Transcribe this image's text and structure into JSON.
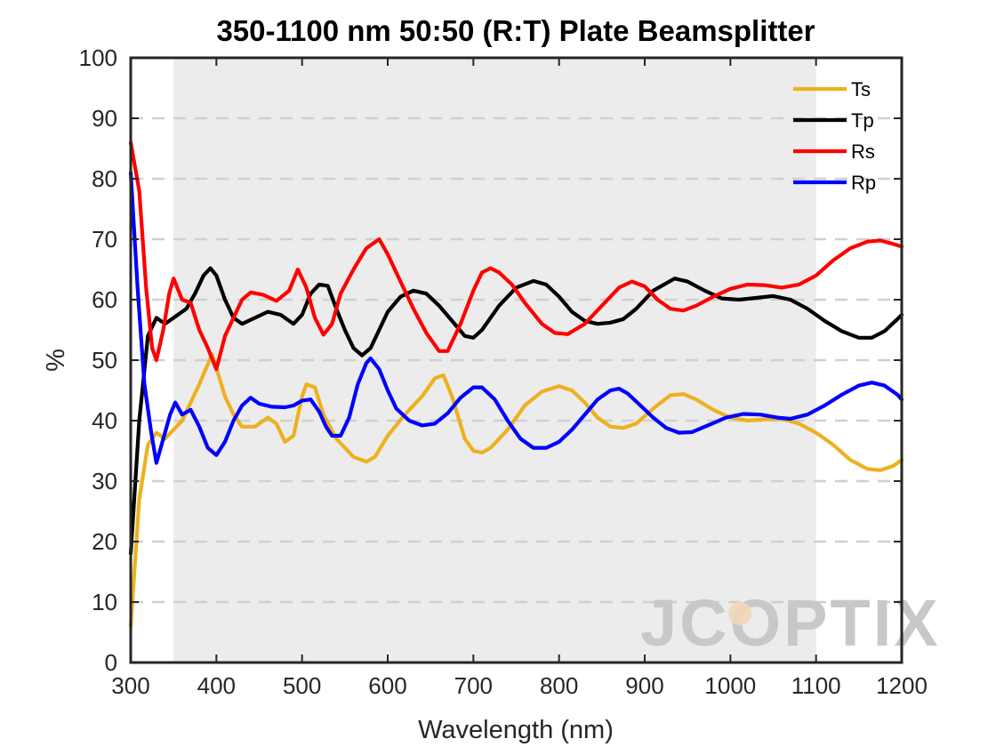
{
  "chart_data": {
    "type": "line",
    "title": "350-1100 nm 50:50 (R:T) Plate Beamsplitter",
    "xlabel": "Wavelength (nm)",
    "ylabel": "%",
    "xlim": [
      300,
      1200
    ],
    "ylim": [
      0,
      100
    ],
    "xticks": [
      300,
      400,
      500,
      600,
      700,
      800,
      900,
      1000,
      1100,
      1200
    ],
    "yticks": [
      0,
      10,
      20,
      30,
      40,
      50,
      60,
      70,
      80,
      90,
      100
    ],
    "grid": "horizontal dashed",
    "legend_position": "top-right",
    "shaded_band": [
      350,
      1100
    ],
    "watermark": "JCOPTIX",
    "series": [
      {
        "name": "Ts",
        "color": "#EDB120",
        "points": [
          [
            300,
            6
          ],
          [
            310,
            27
          ],
          [
            320,
            36
          ],
          [
            330,
            38
          ],
          [
            340,
            37
          ],
          [
            360,
            40
          ],
          [
            380,
            46
          ],
          [
            395,
            51
          ],
          [
            410,
            44
          ],
          [
            420,
            41
          ],
          [
            430,
            39
          ],
          [
            445,
            39
          ],
          [
            460,
            40.5
          ],
          [
            470,
            39.5
          ],
          [
            480,
            36.5
          ],
          [
            490,
            37.5
          ],
          [
            500,
            44
          ],
          [
            505,
            46
          ],
          [
            515,
            45.5
          ],
          [
            525,
            41
          ],
          [
            540,
            37
          ],
          [
            560,
            34
          ],
          [
            575,
            33.2
          ],
          [
            585,
            34
          ],
          [
            600,
            37.5
          ],
          [
            620,
            41
          ],
          [
            640,
            44
          ],
          [
            655,
            47
          ],
          [
            665,
            47.5
          ],
          [
            675,
            44
          ],
          [
            690,
            37
          ],
          [
            700,
            35
          ],
          [
            710,
            34.7
          ],
          [
            720,
            35.5
          ],
          [
            740,
            38.5
          ],
          [
            760,
            42.5
          ],
          [
            780,
            44.8
          ],
          [
            800,
            45.7
          ],
          [
            815,
            45
          ],
          [
            830,
            43
          ],
          [
            845,
            40.5
          ],
          [
            860,
            39
          ],
          [
            875,
            38.8
          ],
          [
            890,
            39.5
          ],
          [
            910,
            42
          ],
          [
            930,
            44.2
          ],
          [
            945,
            44.4
          ],
          [
            960,
            43.5
          ],
          [
            980,
            41.8
          ],
          [
            1000,
            40.5
          ],
          [
            1020,
            40
          ],
          [
            1040,
            40.2
          ],
          [
            1060,
            40.3
          ],
          [
            1080,
            39.5
          ],
          [
            1100,
            38
          ],
          [
            1120,
            36
          ],
          [
            1140,
            33.5
          ],
          [
            1160,
            32
          ],
          [
            1175,
            31.8
          ],
          [
            1190,
            32.5
          ],
          [
            1200,
            33.5
          ]
        ]
      },
      {
        "name": "Tp",
        "color": "#000000",
        "points": [
          [
            300,
            18
          ],
          [
            310,
            40
          ],
          [
            320,
            54
          ],
          [
            330,
            57
          ],
          [
            340,
            56
          ],
          [
            350,
            57
          ],
          [
            365,
            58.5
          ],
          [
            375,
            61
          ],
          [
            385,
            64
          ],
          [
            393,
            65.2
          ],
          [
            400,
            64
          ],
          [
            410,
            60
          ],
          [
            420,
            57
          ],
          [
            430,
            56
          ],
          [
            445,
            57
          ],
          [
            460,
            58
          ],
          [
            475,
            57.5
          ],
          [
            490,
            56
          ],
          [
            500,
            57.5
          ],
          [
            510,
            61
          ],
          [
            520,
            62.5
          ],
          [
            530,
            62.3
          ],
          [
            540,
            58.5
          ],
          [
            550,
            55
          ],
          [
            560,
            52
          ],
          [
            570,
            50.8
          ],
          [
            580,
            52
          ],
          [
            590,
            55
          ],
          [
            600,
            58
          ],
          [
            615,
            60.5
          ],
          [
            630,
            61.5
          ],
          [
            645,
            61
          ],
          [
            660,
            59
          ],
          [
            675,
            56.5
          ],
          [
            690,
            54
          ],
          [
            700,
            53.7
          ],
          [
            710,
            55
          ],
          [
            730,
            59
          ],
          [
            750,
            62
          ],
          [
            770,
            63.1
          ],
          [
            785,
            62.5
          ],
          [
            800,
            60.5
          ],
          [
            815,
            58
          ],
          [
            830,
            56.5
          ],
          [
            845,
            56
          ],
          [
            860,
            56.2
          ],
          [
            875,
            56.8
          ],
          [
            890,
            58.5
          ],
          [
            910,
            61.5
          ],
          [
            935,
            63.5
          ],
          [
            950,
            63
          ],
          [
            970,
            61.5
          ],
          [
            990,
            60.2
          ],
          [
            1010,
            60
          ],
          [
            1030,
            60.3
          ],
          [
            1050,
            60.6
          ],
          [
            1070,
            60
          ],
          [
            1090,
            58.5
          ],
          [
            1110,
            56.5
          ],
          [
            1130,
            54.8
          ],
          [
            1150,
            53.7
          ],
          [
            1165,
            53.7
          ],
          [
            1180,
            54.8
          ],
          [
            1195,
            56.8
          ],
          [
            1200,
            57.5
          ]
        ]
      },
      {
        "name": "Rs",
        "color": "#FF0000",
        "points": [
          [
            300,
            86
          ],
          [
            310,
            78
          ],
          [
            318,
            62
          ],
          [
            325,
            52
          ],
          [
            330,
            50
          ],
          [
            338,
            55
          ],
          [
            345,
            61
          ],
          [
            350,
            63.5
          ],
          [
            360,
            60
          ],
          [
            370,
            59.5
          ],
          [
            380,
            55
          ],
          [
            390,
            52
          ],
          [
            400,
            48.5
          ],
          [
            410,
            54
          ],
          [
            420,
            57
          ],
          [
            430,
            60
          ],
          [
            440,
            61.2
          ],
          [
            455,
            60.8
          ],
          [
            470,
            59.8
          ],
          [
            485,
            61.5
          ],
          [
            495,
            65
          ],
          [
            505,
            62
          ],
          [
            515,
            57
          ],
          [
            525,
            54.2
          ],
          [
            535,
            56
          ],
          [
            545,
            61
          ],
          [
            560,
            65
          ],
          [
            575,
            68.5
          ],
          [
            590,
            70
          ],
          [
            600,
            67.5
          ],
          [
            615,
            63
          ],
          [
            630,
            58.5
          ],
          [
            645,
            54.5
          ],
          [
            660,
            51.5
          ],
          [
            670,
            51.5
          ],
          [
            685,
            56
          ],
          [
            700,
            61.5
          ],
          [
            710,
            64.5
          ],
          [
            720,
            65.2
          ],
          [
            730,
            64.5
          ],
          [
            745,
            62.5
          ],
          [
            760,
            59.5
          ],
          [
            780,
            56
          ],
          [
            795,
            54.5
          ],
          [
            810,
            54.3
          ],
          [
            830,
            56
          ],
          [
            850,
            59
          ],
          [
            870,
            62
          ],
          [
            885,
            63
          ],
          [
            900,
            62.2
          ],
          [
            915,
            60
          ],
          [
            930,
            58.5
          ],
          [
            945,
            58.2
          ],
          [
            960,
            59
          ],
          [
            980,
            60.5
          ],
          [
            1000,
            61.8
          ],
          [
            1020,
            62.5
          ],
          [
            1040,
            62.4
          ],
          [
            1060,
            62
          ],
          [
            1080,
            62.5
          ],
          [
            1100,
            64
          ],
          [
            1120,
            66.5
          ],
          [
            1140,
            68.5
          ],
          [
            1160,
            69.6
          ],
          [
            1175,
            69.8
          ],
          [
            1190,
            69.2
          ],
          [
            1200,
            68.8
          ]
        ]
      },
      {
        "name": "Rp",
        "color": "#0000FF",
        "points": [
          [
            300,
            81
          ],
          [
            308,
            62
          ],
          [
            316,
            46
          ],
          [
            324,
            38
          ],
          [
            330,
            33
          ],
          [
            338,
            37
          ],
          [
            346,
            41
          ],
          [
            352,
            43
          ],
          [
            360,
            41
          ],
          [
            370,
            41.8
          ],
          [
            380,
            39
          ],
          [
            390,
            35.5
          ],
          [
            400,
            34.3
          ],
          [
            410,
            36.5
          ],
          [
            420,
            40
          ],
          [
            430,
            42.5
          ],
          [
            440,
            43.8
          ],
          [
            450,
            42.8
          ],
          [
            465,
            42.3
          ],
          [
            480,
            42.2
          ],
          [
            490,
            42.5
          ],
          [
            500,
            43.3
          ],
          [
            510,
            43.5
          ],
          [
            520,
            41.5
          ],
          [
            528,
            39
          ],
          [
            535,
            37.5
          ],
          [
            545,
            37.5
          ],
          [
            555,
            40.5
          ],
          [
            565,
            46
          ],
          [
            575,
            49.5
          ],
          [
            580,
            50.3
          ],
          [
            590,
            48.5
          ],
          [
            600,
            45
          ],
          [
            610,
            42
          ],
          [
            625,
            40
          ],
          [
            640,
            39.2
          ],
          [
            655,
            39.5
          ],
          [
            670,
            41.2
          ],
          [
            685,
            43.8
          ],
          [
            700,
            45.5
          ],
          [
            710,
            45.5
          ],
          [
            725,
            43.5
          ],
          [
            740,
            40
          ],
          [
            755,
            37
          ],
          [
            770,
            35.5
          ],
          [
            785,
            35.5
          ],
          [
            800,
            36.5
          ],
          [
            815,
            38.5
          ],
          [
            830,
            41
          ],
          [
            845,
            43.5
          ],
          [
            860,
            45
          ],
          [
            870,
            45.3
          ],
          [
            880,
            44.5
          ],
          [
            895,
            42.5
          ],
          [
            910,
            40.5
          ],
          [
            925,
            38.8
          ],
          [
            940,
            38
          ],
          [
            955,
            38.1
          ],
          [
            975,
            39.3
          ],
          [
            995,
            40.5
          ],
          [
            1015,
            41.1
          ],
          [
            1035,
            41
          ],
          [
            1055,
            40.5
          ],
          [
            1070,
            40.3
          ],
          [
            1090,
            41
          ],
          [
            1110,
            42.5
          ],
          [
            1130,
            44.3
          ],
          [
            1150,
            45.8
          ],
          [
            1165,
            46.3
          ],
          [
            1180,
            45.8
          ],
          [
            1195,
            44.3
          ],
          [
            1200,
            43.5
          ]
        ]
      }
    ]
  }
}
